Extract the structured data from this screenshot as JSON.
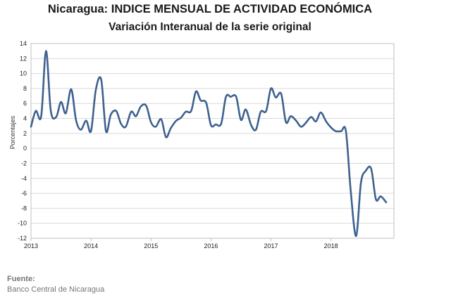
{
  "title": "Nicaragua: INDICE MENSUAL DE ACTIVIDAD ECONÓMICA",
  "subtitle": "Variación Interanual de la serie original",
  "source_label": "Fuente:",
  "source_value": "Banco Central de Nicaragua",
  "chart_data": {
    "type": "line",
    "ylabel": "Porcentajes",
    "ylim": [
      -12,
      14
    ],
    "yticks": [
      14,
      12,
      10,
      8,
      6,
      4,
      2,
      0,
      -2,
      -4,
      -6,
      -8,
      -10,
      -12
    ],
    "xlim": [
      2013,
      2019.05
    ],
    "xticks": [
      2013,
      2014,
      2015,
      2016,
      2017,
      2018
    ],
    "grid": "horizontal",
    "line_color": "#3e618f",
    "x": [
      2013.0,
      2013.08,
      2013.17,
      2013.25,
      2013.33,
      2013.42,
      2013.5,
      2013.58,
      2013.67,
      2013.75,
      2013.83,
      2013.92,
      2014.0,
      2014.08,
      2014.17,
      2014.25,
      2014.33,
      2014.42,
      2014.5,
      2014.58,
      2014.67,
      2014.75,
      2014.83,
      2014.92,
      2015.0,
      2015.08,
      2015.17,
      2015.25,
      2015.33,
      2015.42,
      2015.5,
      2015.58,
      2015.67,
      2015.75,
      2015.83,
      2015.92,
      2016.0,
      2016.08,
      2016.17,
      2016.25,
      2016.33,
      2016.42,
      2016.5,
      2016.58,
      2016.67,
      2016.75,
      2016.83,
      2016.92,
      2017.0,
      2017.08,
      2017.17,
      2017.25,
      2017.33,
      2017.42,
      2017.5,
      2017.58,
      2017.67,
      2017.75,
      2017.83,
      2017.92,
      2018.0,
      2018.08,
      2018.17,
      2018.25,
      2018.33,
      2018.42,
      2018.5,
      2018.58,
      2018.67,
      2018.75,
      2018.83,
      2018.92
    ],
    "y": [
      2.9,
      5.0,
      4.3,
      13.0,
      5.0,
      4.2,
      6.2,
      4.7,
      7.9,
      3.8,
      2.5,
      3.7,
      2.3,
      7.8,
      9.2,
      2.3,
      4.5,
      5.0,
      3.3,
      2.9,
      4.9,
      4.3,
      5.6,
      5.7,
      3.5,
      2.9,
      3.9,
      1.5,
      2.7,
      3.7,
      4.1,
      4.9,
      5.0,
      7.6,
      6.4,
      6.1,
      3.1,
      3.2,
      3.3,
      6.9,
      6.9,
      6.9,
      3.8,
      5.2,
      3.1,
      2.5,
      4.9,
      5.0,
      8.0,
      6.8,
      7.3,
      3.5,
      4.3,
      3.7,
      2.9,
      3.4,
      4.2,
      3.6,
      4.8,
      3.6,
      2.8,
      2.3,
      2.3,
      2.3,
      -5.7,
      -11.7,
      -4.6,
      -3.0,
      -2.7,
      -6.8,
      -6.4,
      -7.2
    ]
  }
}
